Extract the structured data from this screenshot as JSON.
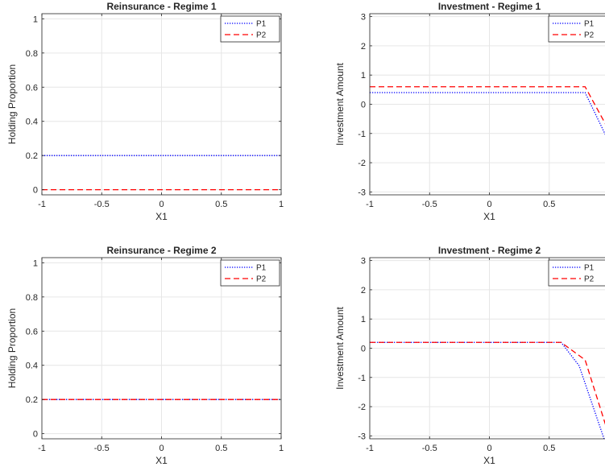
{
  "chart_data": [
    {
      "type": "line",
      "title": "Reinsurance - Regime 1",
      "xlabel": "X1",
      "ylabel": "Holding Proportion",
      "xlim": [
        -1,
        1
      ],
      "ylim": [
        -0.03,
        1.03
      ],
      "xticks": [
        -1,
        -0.5,
        0,
        0.5,
        1
      ],
      "xtick_labels": [
        "-1",
        "-0.5",
        "0",
        "0.5",
        "1"
      ],
      "yticks": [
        0,
        0.2,
        0.4,
        0.6,
        0.8,
        1
      ],
      "ytick_labels": [
        "0",
        "0.2",
        "0.4",
        "0.6",
        "0.8",
        "1"
      ],
      "grid": true,
      "legend": "top-right",
      "series": [
        {
          "name": "P1",
          "color": "#0000ff",
          "style": "dotted",
          "x": [
            -1,
            1
          ],
          "y": [
            0.2,
            0.2
          ]
        },
        {
          "name": "P2",
          "color": "#ff0000",
          "style": "dashed",
          "x": [
            -1,
            1
          ],
          "y": [
            0,
            0
          ]
        }
      ]
    },
    {
      "type": "line",
      "title": "Investment - Regime 1",
      "xlabel": "X1",
      "ylabel": "Investment Amount",
      "xlim": [
        -1,
        1
      ],
      "ylim": [
        -3.1,
        3.1
      ],
      "xticks": [
        -1,
        -0.5,
        0,
        0.5,
        1
      ],
      "xtick_labels": [
        "-1",
        "-0.5",
        "0",
        "0.5",
        ""
      ],
      "yticks": [
        -3,
        -2,
        -1,
        0,
        1,
        2,
        3
      ],
      "ytick_labels": [
        "-3",
        "-2",
        "-1",
        "0",
        "1",
        "2",
        "3"
      ],
      "grid": true,
      "legend": "top-right",
      "series": [
        {
          "name": "P1",
          "color": "#0000ff",
          "style": "dotted",
          "x": [
            -1,
            0.8,
            1
          ],
          "y": [
            0.4,
            0.4,
            -1.3
          ]
        },
        {
          "name": "P2",
          "color": "#ff0000",
          "style": "dashed",
          "x": [
            -1,
            0.8,
            1
          ],
          "y": [
            0.6,
            0.6,
            -0.9
          ]
        }
      ]
    },
    {
      "type": "line",
      "title": "Reinsurance - Regime 2",
      "xlabel": "X1",
      "ylabel": "Holding Proportion",
      "xlim": [
        -1,
        1
      ],
      "ylim": [
        -0.03,
        1.03
      ],
      "xticks": [
        -1,
        -0.5,
        0,
        0.5,
        1
      ],
      "xtick_labels": [
        "-1",
        "-0.5",
        "0",
        "0.5",
        "1"
      ],
      "yticks": [
        0,
        0.2,
        0.4,
        0.6,
        0.8,
        1
      ],
      "ytick_labels": [
        "0",
        "0.2",
        "0.4",
        "0.6",
        "0.8",
        "1"
      ],
      "grid": true,
      "legend": "top-right",
      "series": [
        {
          "name": "P1",
          "color": "#0000ff",
          "style": "dotted",
          "x": [
            -1,
            1
          ],
          "y": [
            0.2,
            0.2
          ]
        },
        {
          "name": "P2",
          "color": "#ff0000",
          "style": "dashed",
          "x": [
            -1,
            1
          ],
          "y": [
            0.2,
            0.2
          ]
        }
      ]
    },
    {
      "type": "line",
      "title": "Investment - Regime 2",
      "xlabel": "X1",
      "ylabel": "Investment Amount",
      "xlim": [
        -1,
        1
      ],
      "ylim": [
        -3.1,
        3.1
      ],
      "xticks": [
        -1,
        -0.5,
        0,
        0.5,
        1
      ],
      "xtick_labels": [
        "-1",
        "-0.5",
        "0",
        "0.5",
        ""
      ],
      "yticks": [
        -3,
        -2,
        -1,
        0,
        1,
        2,
        3
      ],
      "ytick_labels": [
        "-3",
        "-2",
        "-1",
        "0",
        "1",
        "2",
        "3"
      ],
      "grid": true,
      "legend": "top-right",
      "series": [
        {
          "name": "P1",
          "color": "#0000ff",
          "style": "dotted",
          "x": [
            -1,
            0.6,
            0.75,
            1
          ],
          "y": [
            0.2,
            0.2,
            -0.6,
            -3.6
          ]
        },
        {
          "name": "P2",
          "color": "#ff0000",
          "style": "dashed",
          "x": [
            -1,
            0.6,
            0.8,
            1
          ],
          "y": [
            0.2,
            0.2,
            -0.4,
            -3.0
          ]
        }
      ]
    }
  ]
}
